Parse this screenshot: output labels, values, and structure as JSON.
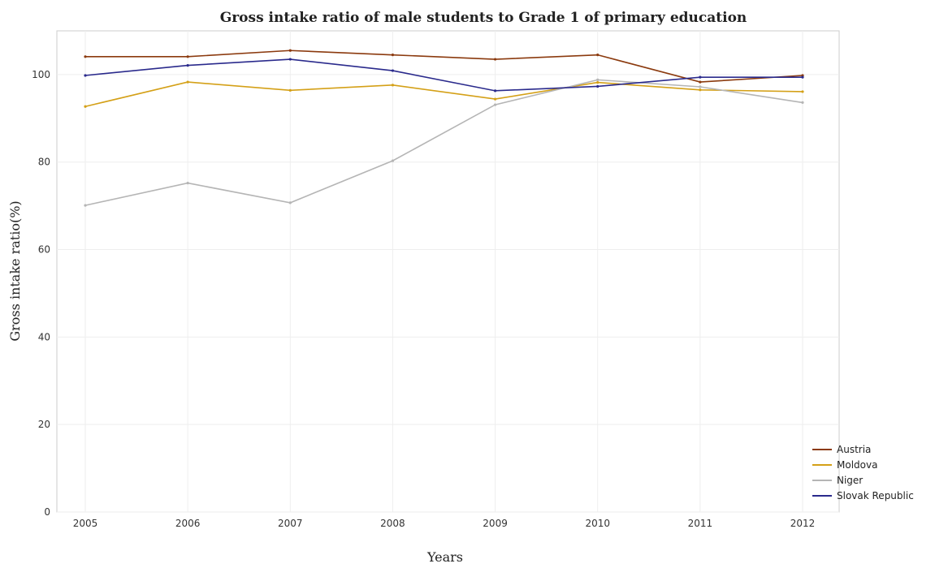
{
  "chart_data": {
    "type": "line",
    "title": "Gross intake ratio of male students to Grade 1 of primary education",
    "xlabel": "Years",
    "ylabel": "Gross intake ratio(%)",
    "x": [
      "2005",
      "2006",
      "2007",
      "2008",
      "2009",
      "2010",
      "2011",
      "2012"
    ],
    "ylim": [
      0,
      110
    ],
    "yticks": [
      0,
      20,
      40,
      60,
      80,
      100
    ],
    "grid": true,
    "legend_position": "bottom-right",
    "series": [
      {
        "name": "Austria",
        "color": "#8b3a0e",
        "values": [
          104.1,
          104.1,
          105.5,
          104.5,
          103.5,
          104.5,
          98.3,
          99.8
        ]
      },
      {
        "name": "Moldova",
        "color": "#d4a017",
        "values": [
          92.7,
          98.3,
          96.4,
          97.6,
          94.4,
          98.2,
          96.5,
          96.1
        ]
      },
      {
        "name": "Niger",
        "color": "#b5b5b5",
        "values": [
          70.1,
          75.2,
          70.7,
          80.3,
          93.1,
          98.8,
          97.2,
          93.6
        ]
      },
      {
        "name": "Slovak Republic",
        "color": "#2a2a8c",
        "values": [
          99.8,
          102.1,
          103.5,
          100.9,
          96.3,
          97.3,
          99.4,
          99.4
        ]
      }
    ]
  }
}
